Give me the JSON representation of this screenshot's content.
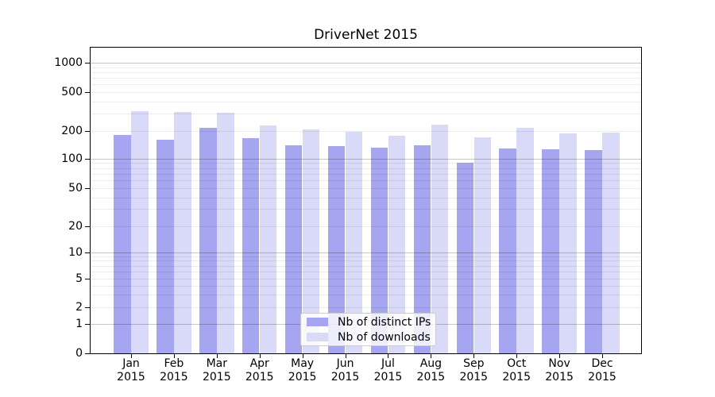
{
  "chart_data": {
    "type": "bar",
    "title": "DriverNet 2015",
    "x_tick_year": "2015",
    "categories": [
      "Jan",
      "Feb",
      "Mar",
      "Apr",
      "May",
      "Jun",
      "Jul",
      "Aug",
      "Sep",
      "Oct",
      "Nov",
      "Dec"
    ],
    "series": [
      {
        "name": "Nb of distinct IPs",
        "color": "#a5a5f0",
        "values": [
          180,
          160,
          215,
          165,
          140,
          136,
          130,
          140,
          90,
          128,
          125,
          123
        ]
      },
      {
        "name": "Nb of downloads",
        "color": "#d9d9f8",
        "values": [
          320,
          310,
          305,
          225,
          205,
          195,
          175,
          230,
          170,
          215,
          185,
          190
        ]
      }
    ],
    "y_ticks": [
      0,
      1,
      2,
      5,
      10,
      20,
      50,
      100,
      200,
      500,
      1000
    ],
    "y_scale": "symlog",
    "ylim": [
      0,
      1450
    ],
    "xlabel": "",
    "ylabel": "",
    "grid": true,
    "legend_position": "lower center"
  }
}
